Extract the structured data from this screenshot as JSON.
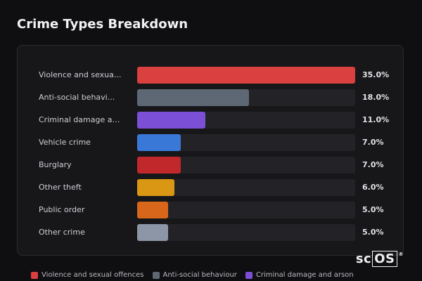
{
  "chart_data": {
    "type": "bar",
    "orientation": "horizontal",
    "title": "Crime Types Breakdown",
    "xlim": [
      0,
      35
    ],
    "categories": [
      {
        "label": "Violence and sexua...",
        "full_name": "Violence and sexual offences",
        "value": 35.0,
        "value_label": "35.0%",
        "color": "#d9403f"
      },
      {
        "label": "Anti-social behavi...",
        "full_name": "Anti-social behaviour",
        "value": 18.0,
        "value_label": "18.0%",
        "color": "#5e6875"
      },
      {
        "label": "Criminal damage an...",
        "full_name": "Criminal damage and arson",
        "value": 11.0,
        "value_label": "11.0%",
        "color": "#7b4fd6"
      },
      {
        "label": "Vehicle crime",
        "value": 7.0,
        "value_label": "7.0%",
        "color": "#3a78d8"
      },
      {
        "label": "Burglary",
        "value": 7.0,
        "value_label": "7.0%",
        "color": "#c0282b"
      },
      {
        "label": "Other theft",
        "value": 6.0,
        "value_label": "6.0%",
        "color": "#d99714"
      },
      {
        "label": "Public order",
        "value": 5.0,
        "value_label": "5.0%",
        "color": "#d8661b"
      },
      {
        "label": "Other crime",
        "value": 5.0,
        "value_label": "5.0%",
        "color": "#8d96a6"
      }
    ],
    "legend": {
      "placement": "bottom",
      "items": [
        {
          "label": "Violence and sexual offences",
          "color": "#d9403f"
        },
        {
          "label": "Anti-social behaviour",
          "color": "#5e6875"
        },
        {
          "label": "Criminal damage and arson",
          "color": "#7b4fd6"
        }
      ]
    }
  },
  "branding": {
    "logo_prefix": "sc",
    "logo_boxed": "OS",
    "logo_mark": "®"
  }
}
